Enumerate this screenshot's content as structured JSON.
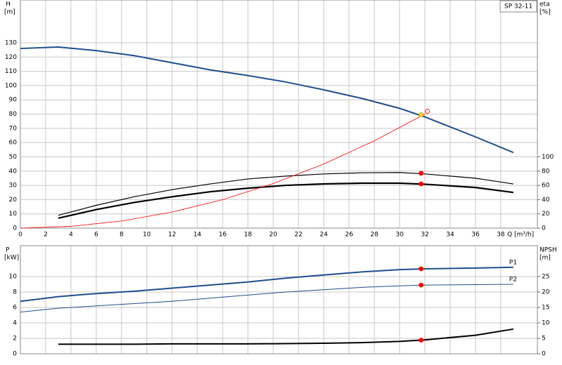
{
  "chart_data": [
    {
      "type": "line",
      "title": "SP 32-11",
      "ylabel": "H",
      "yunit": "[m]",
      "y2label": "eta",
      "y2unit": "[%]",
      "xlabel": "Q [m³/h]",
      "xlim": [
        0,
        40.9
      ],
      "xticks": [
        0,
        2,
        4,
        6,
        8,
        10,
        12,
        14,
        16,
        18,
        20,
        22,
        24,
        26,
        28,
        30,
        32,
        34,
        36,
        38
      ],
      "ylim": [
        0,
        160
      ],
      "yticks": [
        0,
        10,
        20,
        30,
        40,
        50,
        60,
        70,
        80,
        90,
        100,
        110,
        120,
        130
      ],
      "y2lim": [
        0,
        320
      ],
      "y2ticks": [
        0,
        20,
        40,
        60,
        80,
        100
      ],
      "grid": true,
      "series": [
        {
          "color": "#1f4e8c",
          "line_width": 2,
          "x": [
            0,
            3,
            6,
            9,
            12,
            15,
            18,
            21,
            24,
            27,
            30,
            32,
            36,
            39
          ],
          "values": [
            126,
            127,
            124.5,
            121,
            116,
            111,
            107,
            102.5,
            97,
            91,
            84,
            78,
            64,
            53
          ]
        },
        {
          "color": "#000000",
          "line_width": 1.2,
          "axis": "y2",
          "x": [
            3,
            6,
            9,
            12,
            15,
            18,
            21,
            24,
            27,
            30,
            32,
            36,
            39
          ],
          "values": [
            18,
            32,
            44,
            54,
            62,
            69,
            73,
            76,
            77.6,
            78,
            76,
            70,
            62
          ]
        },
        {
          "color": "#000000",
          "line_width": 2.2,
          "axis": "y2",
          "x": [
            3,
            6,
            9,
            12,
            15,
            18,
            21,
            24,
            27,
            30,
            32,
            36,
            39
          ],
          "values": [
            14,
            26,
            36,
            44,
            51,
            56,
            60,
            62,
            63,
            63,
            61.6,
            57,
            50
          ]
        },
        {
          "color": "#ff0000",
          "line_width": 0.8,
          "x": [
            0,
            4,
            8,
            12,
            16,
            20,
            24,
            28,
            32
          ],
          "values": [
            0,
            1.25,
            5,
            11.25,
            20,
            31.25,
            45,
            61.25,
            80
          ]
        }
      ],
      "points": [
        {
          "x": 31.7,
          "y": 79.5,
          "color": "#ffd700"
        },
        {
          "x": 32.2,
          "y": 82,
          "color": "#ffffff"
        },
        {
          "x": 31.7,
          "y": 77,
          "axis": "y2",
          "color": "#ff0000"
        },
        {
          "x": 31.7,
          "y": 62,
          "axis": "y2",
          "color": "#ff0000"
        }
      ]
    },
    {
      "type": "line",
      "ylabel": "P",
      "yunit": "[kW]",
      "y2label": "NPSH",
      "y2unit": "[m]",
      "xlim": [
        0,
        40.9
      ],
      "ylim": [
        0,
        14
      ],
      "yticks": [
        0,
        2,
        4,
        6,
        8,
        10
      ],
      "y2lim": [
        0,
        35
      ],
      "y2ticks": [
        0,
        5,
        10,
        15,
        20,
        25
      ],
      "grid": true,
      "series": [
        {
          "name": "P1",
          "color": "#1f4e8c",
          "line_width": 2,
          "x": [
            0,
            3,
            6,
            9,
            12,
            15,
            18,
            21,
            24,
            27,
            30,
            32,
            36,
            39
          ],
          "values": [
            6.8,
            7.4,
            7.8,
            8.1,
            8.5,
            8.9,
            9.3,
            9.8,
            10.2,
            10.6,
            10.9,
            11.0,
            11.1,
            11.2
          ]
        },
        {
          "name": "P2",
          "color": "#1f4e8c",
          "line_width": 1,
          "x": [
            0,
            3,
            6,
            9,
            12,
            15,
            18,
            21,
            24,
            27,
            30,
            32,
            36,
            39
          ],
          "values": [
            5.4,
            5.9,
            6.2,
            6.5,
            6.8,
            7.2,
            7.6,
            8.0,
            8.3,
            8.6,
            8.8,
            8.9,
            8.95,
            9.0
          ]
        },
        {
          "color": "#000000",
          "line_width": 2,
          "axis": "y2",
          "x": [
            3,
            6,
            9,
            12,
            15,
            18,
            21,
            24,
            27,
            30,
            32,
            36,
            39
          ],
          "values": [
            3.1,
            3.1,
            3.1,
            3.2,
            3.2,
            3.2,
            3.3,
            3.4,
            3.6,
            4.0,
            4.5,
            6.0,
            8.0
          ]
        }
      ],
      "points": [
        {
          "x": 31.7,
          "y": 11.0,
          "color": "#ff0000"
        },
        {
          "x": 31.7,
          "y": 8.9,
          "color": "#ff0000"
        },
        {
          "x": 31.7,
          "y": 4.4,
          "axis": "y2",
          "color": "#ff0000"
        }
      ]
    }
  ]
}
